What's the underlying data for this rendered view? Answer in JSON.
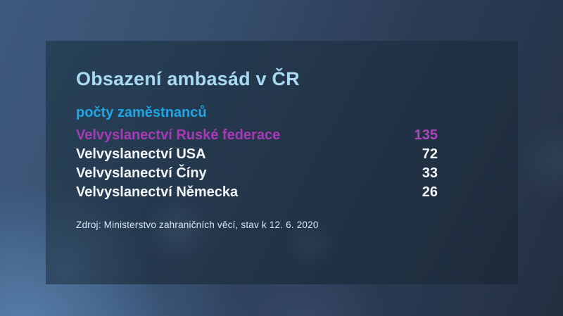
{
  "panel": {
    "title": "Obsazení ambasád v ČR",
    "subtitle": "počty zaměstnanců",
    "rows": [
      {
        "label": "Velvyslanectví Ruské federace",
        "value": "135",
        "highlight": true
      },
      {
        "label": "Velvyslanectví USA",
        "value": "72",
        "highlight": false
      },
      {
        "label": "Velvyslanectví Číny",
        "value": "33",
        "highlight": false
      },
      {
        "label": "Velvyslanectví Německa",
        "value": "26",
        "highlight": false
      }
    ],
    "source": "Zdroj: Ministerstvo zahraničních věcí, stav k 12. 6. 2020"
  },
  "chart_data": {
    "type": "table",
    "title": "Obsazení ambasád v ČR",
    "subtitle": "počty zaměstnanců",
    "categories": [
      "Velvyslanectví Ruské federace",
      "Velvyslanectví USA",
      "Velvyslanectví Číny",
      "Velvyslanectví Německa"
    ],
    "values": [
      135,
      72,
      33,
      26
    ],
    "highlighted_category": "Velvyslanectví Ruské federace",
    "source": "Zdroj: Ministerstvo zahraničních věcí, stav k 12. 6. 2020",
    "legend": "none",
    "grid": "off"
  },
  "colors": {
    "title_color": "#a9daf3",
    "subtitle_color": "#1fa6e5",
    "accent_magenta": "#a83ab8",
    "accent_magenta_value": "#ae46bd",
    "row_color": "#f2f5f8",
    "source_color": "#dde6f0",
    "panel_bg": "#223549",
    "background_light": "#3e5a7e",
    "background_dark": "#232e41"
  }
}
